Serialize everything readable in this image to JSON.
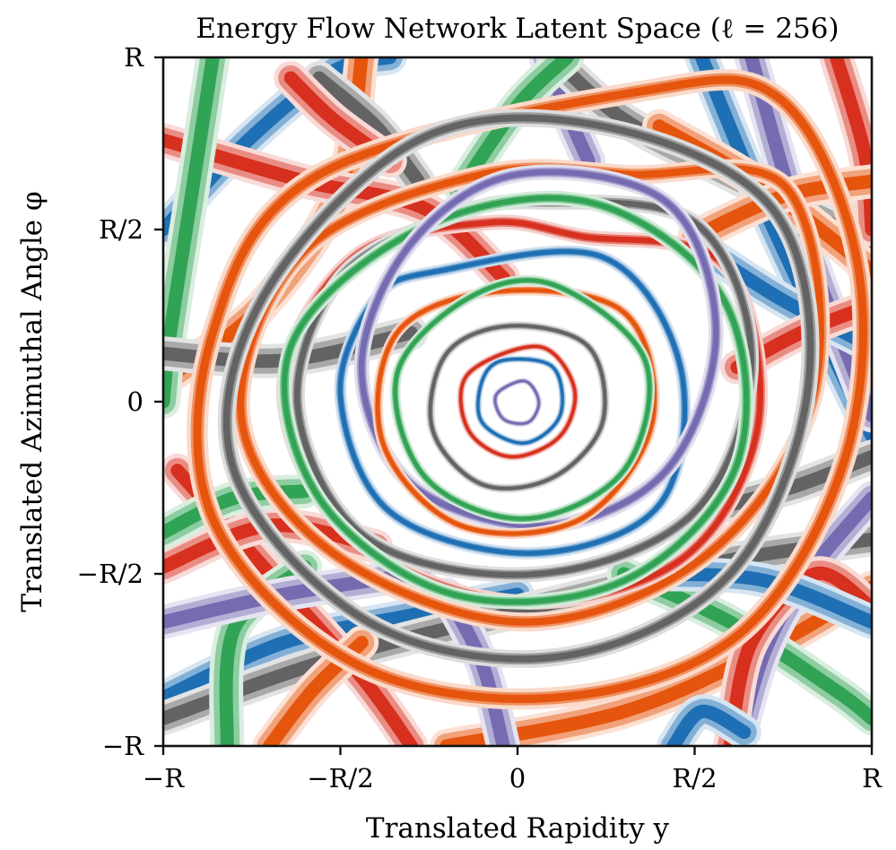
{
  "chart_data": {
    "type": "line",
    "title": "Energy Flow Network Latent Space (ℓ = 256)",
    "xlabel": "Translated Rapidity y",
    "ylabel": "Translated Azimuthal Angle φ",
    "xlim": [
      -1,
      1
    ],
    "ylim": [
      -1,
      1
    ],
    "x_ticks": [
      {
        "value": -1,
        "label": "−R"
      },
      {
        "value": -0.5,
        "label": "−R/2"
      },
      {
        "value": 0,
        "label": "0"
      },
      {
        "value": 0.5,
        "label": "R/2"
      },
      {
        "value": 1,
        "label": "R"
      }
    ],
    "y_ticks": [
      {
        "value": -1,
        "label": "−R"
      },
      {
        "value": -0.5,
        "label": "−R/2"
      },
      {
        "value": 0,
        "label": "0"
      },
      {
        "value": 0.5,
        "label": "R/2"
      },
      {
        "value": 1,
        "label": "R"
      }
    ],
    "grid": false,
    "legend": "none",
    "palette": [
      "#1f6fb4",
      "#e6550d",
      "#31a354",
      "#756bb1",
      "#636363",
      "#d7301f"
    ],
    "series": [
      {
        "color": "#e6550d",
        "kind": "filter",
        "points": [
          [
            0.32,
            0.66
          ],
          [
            0.76,
            0.62
          ],
          [
            0.84,
            0.04
          ],
          [
            0.54,
            -0.44
          ],
          [
            0.02,
            -0.64
          ],
          [
            -0.52,
            -0.44
          ],
          [
            -0.78,
            -0.04
          ],
          [
            -0.6,
            0.44
          ],
          [
            -0.1,
            0.66
          ]
        ]
      },
      {
        "color": "#d7301f",
        "kind": "filter",
        "points": [
          [
            0.18,
            0.48
          ],
          [
            0.58,
            0.4
          ],
          [
            0.68,
            -0.06
          ],
          [
            0.46,
            -0.46
          ],
          [
            -0.02,
            -0.58
          ],
          [
            -0.48,
            -0.38
          ],
          [
            -0.66,
            0.04
          ],
          [
            -0.46,
            0.42
          ],
          [
            -0.08,
            0.52
          ]
        ]
      },
      {
        "color": "#636363",
        "kind": "filter",
        "points": [
          [
            0.06,
            0.58
          ],
          [
            0.5,
            0.52
          ],
          [
            0.66,
            0.12
          ],
          [
            0.5,
            -0.32
          ],
          [
            0.06,
            -0.5
          ],
          [
            -0.42,
            -0.4
          ],
          [
            -0.62,
            -0.02
          ],
          [
            -0.5,
            0.36
          ],
          [
            -0.18,
            0.54
          ]
        ]
      },
      {
        "color": "#31a354",
        "kind": "filter",
        "points": [
          [
            -0.28,
            0.5
          ],
          [
            0.2,
            0.58
          ],
          [
            0.58,
            0.3
          ],
          [
            0.62,
            -0.18
          ],
          [
            0.3,
            -0.52
          ],
          [
            -0.18,
            -0.56
          ],
          [
            -0.56,
            -0.28
          ],
          [
            -0.64,
            0.16
          ]
        ]
      },
      {
        "color": "#1f6fb4",
        "kind": "filter",
        "points": [
          [
            -0.22,
            0.38
          ],
          [
            0.24,
            0.42
          ],
          [
            0.46,
            0.1
          ],
          [
            0.4,
            -0.3
          ],
          [
            0.04,
            -0.44
          ],
          [
            -0.36,
            -0.32
          ],
          [
            -0.5,
            0.02
          ],
          [
            -0.4,
            0.3
          ]
        ]
      },
      {
        "color": "#756bb1",
        "kind": "filter",
        "points": [
          [
            0.0,
            0.66
          ],
          [
            0.42,
            0.58
          ],
          [
            0.56,
            0.2
          ],
          [
            0.42,
            -0.2
          ],
          [
            0.08,
            -0.36
          ],
          [
            -0.3,
            -0.24
          ],
          [
            -0.44,
            0.1
          ],
          [
            -0.3,
            0.46
          ]
        ]
      },
      {
        "color": "#e6550d",
        "kind": "filter",
        "points": [
          [
            -0.06,
            0.32
          ],
          [
            0.3,
            0.26
          ],
          [
            0.38,
            -0.06
          ],
          [
            0.18,
            -0.34
          ],
          [
            -0.16,
            -0.36
          ],
          [
            -0.38,
            -0.12
          ],
          [
            -0.34,
            0.2
          ]
        ]
      },
      {
        "color": "#31a354",
        "kind": "filter",
        "points": [
          [
            0.1,
            0.34
          ],
          [
            0.36,
            0.12
          ],
          [
            0.3,
            -0.2
          ],
          [
            0.02,
            -0.34
          ],
          [
            -0.26,
            -0.22
          ],
          [
            -0.34,
            0.08
          ],
          [
            -0.14,
            0.3
          ]
        ]
      },
      {
        "color": "#636363",
        "kind": "filter",
        "points": [
          [
            -0.02,
            0.22
          ],
          [
            0.2,
            0.16
          ],
          [
            0.24,
            -0.06
          ],
          [
            0.1,
            -0.22
          ],
          [
            -0.1,
            -0.24
          ],
          [
            -0.24,
            -0.08
          ],
          [
            -0.2,
            0.14
          ]
        ]
      },
      {
        "color": "#d7301f",
        "kind": "filter",
        "points": [
          [
            0.06,
            0.16
          ],
          [
            0.16,
            0.04
          ],
          [
            0.12,
            -0.1
          ],
          [
            -0.02,
            -0.16
          ],
          [
            -0.14,
            -0.08
          ],
          [
            -0.14,
            0.08
          ]
        ]
      },
      {
        "color": "#1f6fb4",
        "kind": "filter",
        "points": [
          [
            -0.04,
            0.12
          ],
          [
            0.1,
            0.1
          ],
          [
            0.12,
            -0.04
          ],
          [
            0.02,
            -0.12
          ],
          [
            -0.1,
            -0.06
          ],
          [
            -0.1,
            0.06
          ]
        ]
      },
      {
        "color": "#756bb1",
        "kind": "filter",
        "points": [
          [
            0.02,
            0.06
          ],
          [
            0.06,
            0.0
          ],
          [
            0.03,
            -0.06
          ],
          [
            -0.04,
            -0.05
          ],
          [
            -0.06,
            0.02
          ]
        ]
      },
      {
        "color": "#e6550d",
        "kind": "filter",
        "points": [
          [
            0.34,
            0.9
          ],
          [
            0.74,
            0.88
          ],
          [
            0.96,
            0.4
          ],
          [
            0.92,
            -0.18
          ],
          [
            0.62,
            -0.68
          ],
          [
            0.1,
            -0.86
          ],
          [
            -0.46,
            -0.76
          ],
          [
            -0.86,
            -0.34
          ],
          [
            -0.86,
            0.2
          ],
          [
            -0.56,
            0.66
          ]
        ]
      },
      {
        "color": "#636363",
        "kind": "filter",
        "points": [
          [
            -0.28,
            0.76
          ],
          [
            0.24,
            0.8
          ],
          [
            0.72,
            0.56
          ],
          [
            0.82,
            0.04
          ],
          [
            0.6,
            -0.5
          ],
          [
            0.12,
            -0.74
          ],
          [
            -0.42,
            -0.64
          ],
          [
            -0.8,
            -0.2
          ],
          [
            -0.72,
            0.3
          ]
        ]
      },
      {
        "color": "#1f6fb4",
        "kind": "band",
        "points": [
          [
            -1.0,
            0.5
          ],
          [
            -0.76,
            0.76
          ],
          [
            -0.52,
            0.96
          ],
          [
            -0.36,
            1.0
          ]
        ]
      },
      {
        "color": "#e6550d",
        "kind": "band",
        "points": [
          [
            -0.44,
            1.0
          ],
          [
            -0.5,
            0.62
          ],
          [
            -0.72,
            0.28
          ],
          [
            -1.0,
            0.06
          ]
        ]
      },
      {
        "color": "#d7301f",
        "kind": "band",
        "points": [
          [
            -1.0,
            0.76
          ],
          [
            -0.6,
            0.64
          ],
          [
            -0.26,
            0.56
          ],
          [
            -0.04,
            0.36
          ]
        ]
      },
      {
        "color": "#31a354",
        "kind": "band",
        "points": [
          [
            -0.86,
            1.0
          ],
          [
            -0.92,
            0.6
          ],
          [
            -0.98,
            0.2
          ],
          [
            -1.0,
            0.0
          ]
        ]
      },
      {
        "color": "#756bb1",
        "kind": "band",
        "points": [
          [
            0.08,
            1.0
          ],
          [
            0.14,
            0.84
          ],
          [
            0.2,
            0.7
          ]
        ]
      },
      {
        "color": "#636363",
        "kind": "band",
        "points": [
          [
            0.1,
            1.0
          ],
          [
            0.3,
            0.82
          ],
          [
            0.6,
            0.66
          ],
          [
            1.0,
            0.46
          ]
        ]
      },
      {
        "color": "#1f6fb4",
        "kind": "band",
        "points": [
          [
            0.52,
            1.0
          ],
          [
            0.68,
            0.6
          ],
          [
            0.86,
            0.2
          ],
          [
            1.0,
            -0.1
          ]
        ]
      },
      {
        "color": "#d7301f",
        "kind": "band",
        "points": [
          [
            0.9,
            1.0
          ],
          [
            0.98,
            0.72
          ],
          [
            1.0,
            0.5
          ]
        ]
      },
      {
        "color": "#756bb1",
        "kind": "band",
        "points": [
          [
            0.66,
            1.0
          ],
          [
            0.8,
            0.5
          ],
          [
            0.96,
            0.06
          ],
          [
            1.0,
            -0.04
          ]
        ]
      },
      {
        "color": "#e6550d",
        "kind": "band",
        "points": [
          [
            0.4,
            0.8
          ],
          [
            0.7,
            0.62
          ],
          [
            1.0,
            0.38
          ]
        ]
      },
      {
        "color": "#636363",
        "kind": "band",
        "points": [
          [
            -1.0,
            0.14
          ],
          [
            -0.66,
            0.12
          ],
          [
            -0.3,
            0.2
          ]
        ]
      },
      {
        "color": "#1f6fb4",
        "kind": "band",
        "points": [
          [
            -1.0,
            -0.86
          ],
          [
            -0.66,
            -0.7
          ],
          [
            -0.3,
            -0.62
          ],
          [
            0.0,
            -0.56
          ]
        ]
      },
      {
        "color": "#636363",
        "kind": "band",
        "points": [
          [
            -1.0,
            -0.92
          ],
          [
            -0.5,
            -0.74
          ],
          [
            0.2,
            -0.56
          ],
          [
            0.6,
            -0.46
          ],
          [
            1.0,
            -0.4
          ]
        ]
      },
      {
        "color": "#d7301f",
        "kind": "band",
        "points": [
          [
            -0.96,
            -0.2
          ],
          [
            -0.7,
            -0.5
          ],
          [
            -0.44,
            -0.8
          ],
          [
            -0.3,
            -1.0
          ]
        ]
      },
      {
        "color": "#e6550d",
        "kind": "band",
        "points": [
          [
            -0.2,
            -1.0
          ],
          [
            0.3,
            -0.9
          ],
          [
            0.7,
            -0.72
          ],
          [
            1.0,
            -0.54
          ]
        ]
      },
      {
        "color": "#31a354",
        "kind": "band",
        "points": [
          [
            0.3,
            -0.5
          ],
          [
            0.6,
            -0.64
          ],
          [
            0.9,
            -0.84
          ],
          [
            1.0,
            -0.92
          ]
        ]
      },
      {
        "color": "#756bb1",
        "kind": "band",
        "points": [
          [
            0.62,
            -1.0
          ],
          [
            0.7,
            -0.72
          ],
          [
            0.82,
            -0.5
          ],
          [
            1.0,
            -0.28
          ]
        ]
      },
      {
        "color": "#d7301f",
        "kind": "band",
        "points": [
          [
            0.6,
            -1.0
          ],
          [
            0.66,
            -0.7
          ],
          [
            0.84,
            -0.5
          ],
          [
            1.0,
            -0.6
          ]
        ]
      },
      {
        "color": "#1f6fb4",
        "kind": "band",
        "points": [
          [
            0.44,
            -1.0
          ],
          [
            0.52,
            -0.9
          ],
          [
            0.64,
            -0.96
          ]
        ]
      },
      {
        "color": "#31a354",
        "kind": "band",
        "points": [
          [
            -0.82,
            -1.0
          ],
          [
            -0.8,
            -0.66
          ],
          [
            -0.6,
            -0.48
          ]
        ]
      },
      {
        "color": "#d7301f",
        "kind": "band",
        "points": [
          [
            -1.0,
            -0.48
          ],
          [
            -0.7,
            -0.36
          ],
          [
            -0.4,
            -0.42
          ]
        ]
      },
      {
        "color": "#756bb1",
        "kind": "band",
        "points": [
          [
            -1.0,
            -0.64
          ],
          [
            -0.66,
            -0.56
          ],
          [
            -0.28,
            -0.5
          ]
        ]
      },
      {
        "color": "#1f6fb4",
        "kind": "band",
        "points": [
          [
            1.0,
            0.16
          ],
          [
            0.74,
            0.3
          ],
          [
            0.5,
            0.46
          ]
        ]
      },
      {
        "color": "#31a354",
        "kind": "band",
        "points": [
          [
            0.14,
            1.0
          ],
          [
            0.0,
            0.86
          ],
          [
            -0.16,
            0.62
          ]
        ]
      },
      {
        "color": "#636363",
        "kind": "band",
        "points": [
          [
            -0.56,
            0.94
          ],
          [
            -0.4,
            0.8
          ],
          [
            -0.28,
            0.64
          ]
        ]
      },
      {
        "color": "#e6550d",
        "kind": "band",
        "points": [
          [
            1.0,
            0.64
          ],
          [
            0.76,
            0.6
          ],
          [
            0.5,
            0.48
          ]
        ]
      },
      {
        "color": "#d7301f",
        "kind": "band",
        "points": [
          [
            1.0,
            0.28
          ],
          [
            0.8,
            0.2
          ],
          [
            0.62,
            0.1
          ]
        ]
      },
      {
        "color": "#636363",
        "kind": "band",
        "points": [
          [
            1.0,
            -0.16
          ],
          [
            0.8,
            -0.24
          ],
          [
            0.6,
            -0.3
          ]
        ]
      },
      {
        "color": "#1f6fb4",
        "kind": "band",
        "points": [
          [
            1.0,
            -0.64
          ],
          [
            0.7,
            -0.52
          ],
          [
            0.4,
            -0.5
          ]
        ]
      },
      {
        "color": "#e6550d",
        "kind": "band",
        "points": [
          [
            -0.7,
            -1.0
          ],
          [
            -0.58,
            -0.84
          ],
          [
            -0.44,
            -0.7
          ]
        ]
      },
      {
        "color": "#756bb1",
        "kind": "band",
        "points": [
          [
            -0.04,
            -1.0
          ],
          [
            -0.1,
            -0.76
          ],
          [
            -0.2,
            -0.56
          ]
        ]
      },
      {
        "color": "#d7301f",
        "kind": "band",
        "points": [
          [
            -0.64,
            0.94
          ],
          [
            -0.52,
            0.82
          ],
          [
            -0.36,
            0.7
          ]
        ]
      },
      {
        "color": "#31a354",
        "kind": "band",
        "points": [
          [
            -1.0,
            -0.38
          ],
          [
            -0.8,
            -0.28
          ],
          [
            -0.6,
            -0.26
          ]
        ]
      }
    ]
  }
}
